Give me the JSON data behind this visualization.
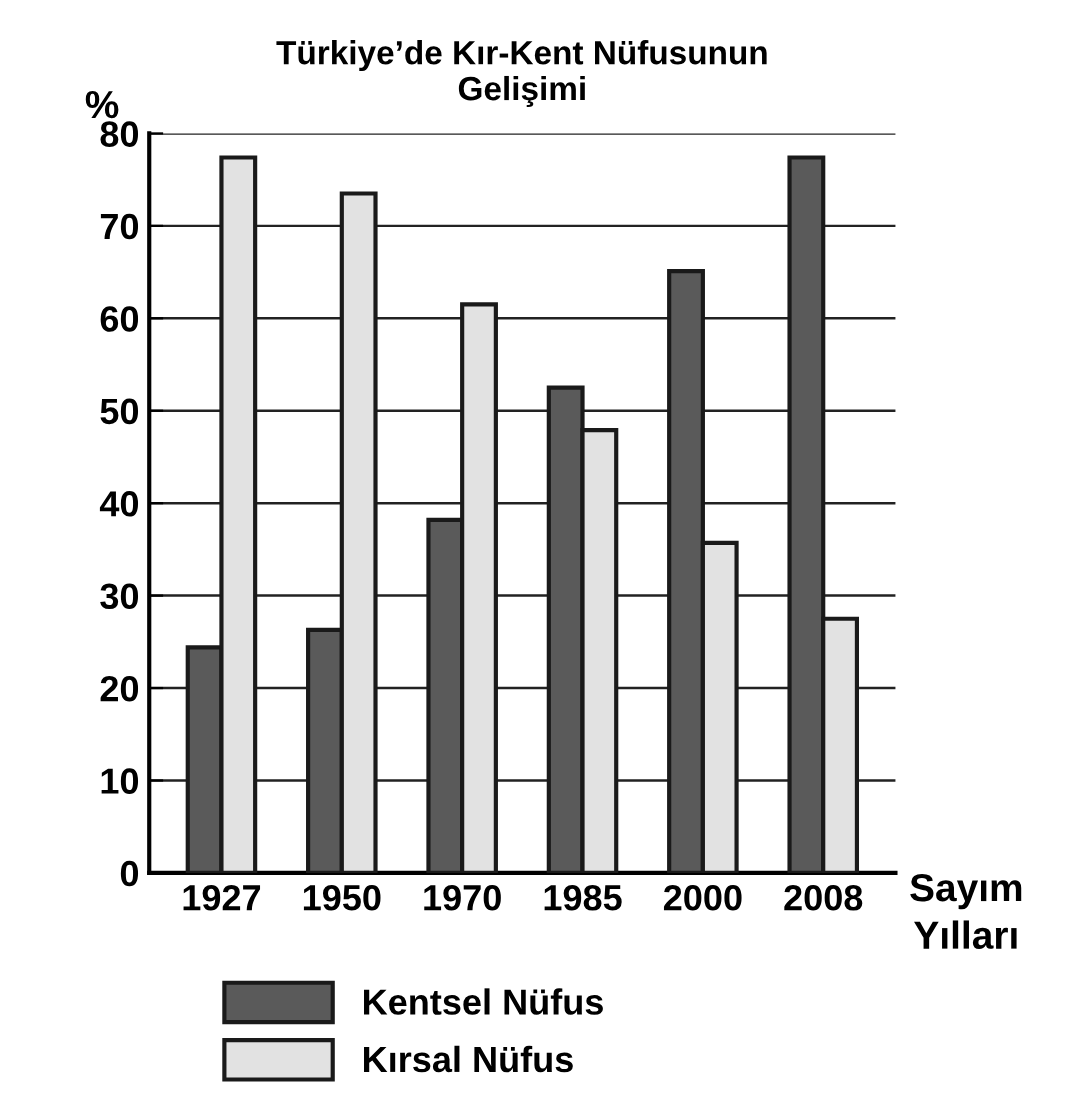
{
  "chart_data": {
    "type": "bar",
    "title": "Türkiye’de Kır-Kent Nüfusunun\nGelişimi",
    "ylabel": "%",
    "xlabel": "Sayım\nYılları",
    "categories": [
      "1927",
      "1950",
      "1970",
      "1985",
      "2000",
      "2008"
    ],
    "series": [
      {
        "name": "Kentsel Nüfus",
        "color": "#5a5a5a",
        "values": [
          24.4,
          26.3,
          38.2,
          52.5,
          65.1,
          77.4
        ]
      },
      {
        "name": "Kırsal Nüfus",
        "color": "#e2e2e2",
        "values": [
          77.4,
          73.5,
          61.5,
          47.9,
          35.7,
          27.5
        ]
      }
    ],
    "ylim": [
      0,
      80
    ],
    "yticks": [
      0,
      10,
      20,
      30,
      40,
      50,
      60,
      70,
      80
    ],
    "grid": "y",
    "legend": "bottom"
  }
}
